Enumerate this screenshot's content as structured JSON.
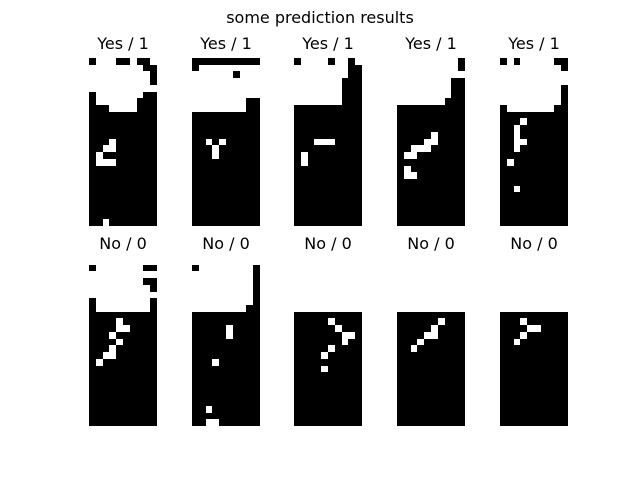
{
  "figure": {
    "title": "some prediction results"
  },
  "panels": [
    {
      "label": "Yes / 1",
      "rows": [
        "0111001001",
        "1111111100",
        "1111111110",
        "1111111110",
        "1111111111",
        "0111111100",
        "0111111000",
        "0001111000",
        "0000000000",
        "0000000000",
        "0000000000",
        "0000000000",
        "0000000000",
        "0000000000",
        "0000000000",
        "0000000000",
        "0000000000",
        "0000000000",
        "0000000000",
        "0000000000",
        "0000000000",
        "0000000000",
        "0000000000",
        "0000000000",
        "0000000000"
      ]
    },
    {
      "label": "Yes / 1",
      "rows": [
        "0000000000",
        "0111111111",
        "1111110111",
        "1111111111",
        "1111111111",
        "1111111111",
        "1111111100",
        "1111111100",
        "0000000000",
        "0000000000",
        "0000000000",
        "0000000000",
        "0000000000",
        "0000000000",
        "0000000000",
        "0000000000",
        "0000000000",
        "0000000000",
        "0000000000",
        "0000000000",
        "0000000000",
        "0000000000",
        "0000000000",
        "0000000000",
        "0000000000"
      ]
    },
    {
      "label": "Yes / 1",
      "rows": [
        "0111101101",
        "1111111100",
        "1111111100",
        "1111111000",
        "1111111000",
        "1111111000",
        "1111111000",
        "0000000000",
        "0000000000",
        "0000000000",
        "0000000000",
        "0000000000",
        "0000000000",
        "0000000000",
        "0000000000",
        "0000000000",
        "0000000000",
        "0000000000",
        "0000000000",
        "0000000000",
        "0000000000",
        "0000000000",
        "0000000000",
        "0000000000",
        "0000000000"
      ]
    },
    {
      "label": "Yes / 1",
      "rows": [
        "1111111110",
        "1111111110",
        "1111111111",
        "1111111100",
        "1111111100",
        "1111111100",
        "1111111000",
        "0000000000",
        "0000000000",
        "0000000000",
        "0000000000",
        "0000000000",
        "0000000000",
        "0000000000",
        "0000000000",
        "0000000000",
        "0000000000",
        "0000000000",
        "0000000000",
        "0000000000",
        "0000000000",
        "0000000000",
        "0000000000",
        "0000000000",
        "0000000000"
      ]
    },
    {
      "label": "Yes / 1",
      "rows": [
        "0101111100",
        "1111111110",
        "1111111111",
        "1111111111",
        "1111111110",
        "1111111110",
        "1111111110",
        "0111111100",
        "0000000000",
        "0000000000",
        "0000000000",
        "0000000000",
        "0000000000",
        "0000000000",
        "0000000000",
        "0000000000",
        "0000000000",
        "0000000000",
        "0000000000",
        "0000000000",
        "0000000000",
        "0000000000",
        "0000000000",
        "0000000000",
        "0000000000"
      ]
    },
    {
      "label": "No / 0",
      "rows": [
        "1111111111",
        "0111111100",
        "1111111111",
        "1111111100",
        "1111111110",
        "1111111111",
        "0111111110",
        "0111111110",
        "0000000000",
        "0000000000",
        "0000000000",
        "0000000000",
        "0000000000",
        "0000000000",
        "0000000000",
        "0000000000",
        "0000000000",
        "0000000000",
        "0000000000",
        "0000000000",
        "0000000000",
        "0000000000",
        "0000000000",
        "0000000000",
        "0000000000"
      ]
    },
    {
      "label": "No / 0",
      "rows": [
        "1111111111",
        "0111111110",
        "1111111110",
        "1111111110",
        "1111111110",
        "1111111110",
        "1111111110",
        "1111111100",
        "0000000000",
        "0000000000",
        "0000000000",
        "0000000000",
        "0000000000",
        "0000000000",
        "0000000000",
        "0000000000",
        "0000000000",
        "0000000000",
        "0000000000",
        "0000000000",
        "0000000000",
        "0000000000",
        "0000000000",
        "0000000000",
        "0000000000"
      ]
    },
    {
      "label": "No / 0",
      "rows": [
        "1111111111",
        "1111111111",
        "1111111111",
        "1111111111",
        "1111111111",
        "1111111111",
        "1111111111",
        "1111111111",
        "0000000000",
        "0000000000",
        "0000000000",
        "0000000000",
        "0000000000",
        "0000000000",
        "0000000000",
        "0000000000",
        "0000000000",
        "0000000000",
        "0000000000",
        "0000000000",
        "0000000000",
        "0000000000",
        "0000000000",
        "0000000000",
        "0000000000"
      ]
    },
    {
      "label": "No / 0",
      "rows": [
        "1111111111",
        "1111111111",
        "1111111111",
        "1111111111",
        "1111111111",
        "1111111111",
        "1111111111",
        "1111111111",
        "0000000000",
        "0000000000",
        "0000000000",
        "0000000000",
        "0000000000",
        "0000000000",
        "0000000000",
        "0000000000",
        "0000000000",
        "0000000000",
        "0000000000",
        "0000000000",
        "0000000000",
        "0000000000",
        "0000000000",
        "0000000000",
        "0000000000"
      ]
    },
    {
      "label": "No / 0",
      "rows": [
        "1111111111",
        "1111111111",
        "1111111111",
        "1111111111",
        "1111111111",
        "1111111111",
        "1111111111",
        "1111111111",
        "0000000000",
        "0000000000",
        "0000000000",
        "0000000000",
        "0000000000",
        "0000000000",
        "0000000000",
        "0000000000",
        "0000000000",
        "0000000000",
        "0000000000",
        "0000000000",
        "0000000000",
        "0000000000",
        "0000000000",
        "0000000000",
        "0000000000"
      ]
    }
  ]
}
